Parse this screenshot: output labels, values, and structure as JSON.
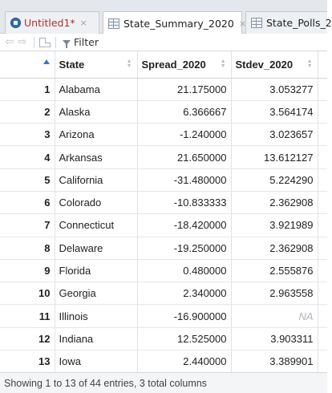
{
  "tabs": [
    {
      "label": "Untitled1*",
      "close": "×",
      "icon": "r-script-icon",
      "modified": true
    },
    {
      "label": "State_Summary_2020",
      "close": "×",
      "icon": "data-grid-icon",
      "active": true
    },
    {
      "label": "State_Polls_2",
      "close": "",
      "icon": "data-grid-icon"
    }
  ],
  "toolbar": {
    "back_icon": "⇦",
    "forward_icon": "⇨",
    "filter_label": "Filter"
  },
  "table": {
    "columns": [
      "",
      "State",
      "Spread_2020",
      "Stdev_2020"
    ],
    "rows": [
      [
        "1",
        "Alabama",
        "21.175000",
        "3.053277"
      ],
      [
        "2",
        "Alaska",
        "6.366667",
        "3.564174"
      ],
      [
        "3",
        "Arizona",
        "-1.240000",
        "3.023657"
      ],
      [
        "4",
        "Arkansas",
        "21.650000",
        "13.612127"
      ],
      [
        "5",
        "California",
        "-31.480000",
        "5.224290"
      ],
      [
        "6",
        "Colorado",
        "-10.833333",
        "2.362908"
      ],
      [
        "7",
        "Connecticut",
        "-18.420000",
        "3.921989"
      ],
      [
        "8",
        "Delaware",
        "-19.250000",
        "2.362908"
      ],
      [
        "9",
        "Florida",
        "0.480000",
        "2.555876"
      ],
      [
        "10",
        "Georgia",
        "2.340000",
        "2.963558"
      ],
      [
        "11",
        "Illinois",
        "-16.900000",
        "NA"
      ],
      [
        "12",
        "Indiana",
        "12.525000",
        "3.903311"
      ],
      [
        "13",
        "Iowa",
        "2.440000",
        "3.389901"
      ]
    ]
  },
  "status": "Showing 1 to 13 of 44 entries, 3 total columns"
}
